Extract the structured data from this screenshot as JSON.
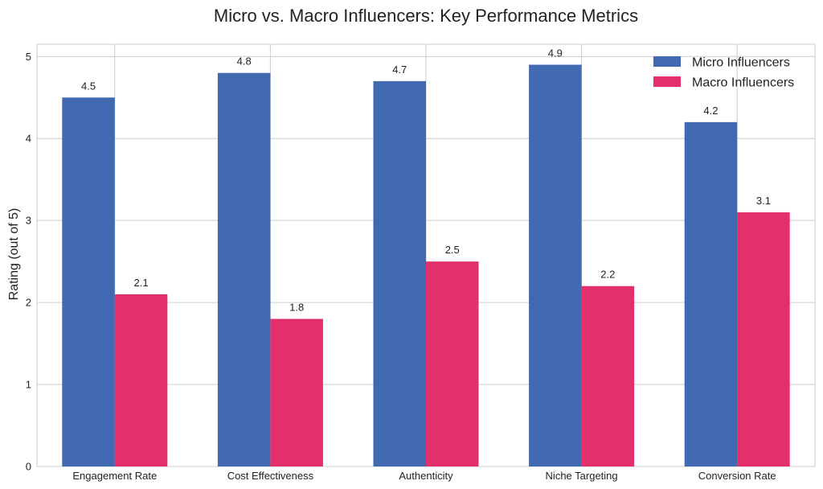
{
  "chart_data": {
    "type": "bar",
    "title": "Micro vs. Macro Influencers: Key Performance Metrics",
    "xlabel": "",
    "ylabel": "Rating (out of 5)",
    "ylim": [
      0,
      5.15
    ],
    "yticks": [
      "0",
      "1",
      "2",
      "3",
      "4",
      "5"
    ],
    "grid": true,
    "legend_position": "top-right",
    "categories": [
      "Engagement Rate",
      "Cost Effectiveness",
      "Authenticity",
      "Niche Targeting",
      "Conversion Rate"
    ],
    "series": [
      {
        "name": "Micro Influencers",
        "color": "#4169b2",
        "values": [
          4.5,
          4.8,
          4.7,
          4.9,
          4.2
        ],
        "labels": [
          "4.5",
          "4.8",
          "4.7",
          "4.9",
          "4.2"
        ]
      },
      {
        "name": "Macro Influencers",
        "color": "#e2306c",
        "values": [
          2.1,
          1.8,
          2.5,
          2.2,
          3.1
        ],
        "labels": [
          "2.1",
          "1.8",
          "2.5",
          "2.2",
          "3.1"
        ]
      }
    ]
  }
}
